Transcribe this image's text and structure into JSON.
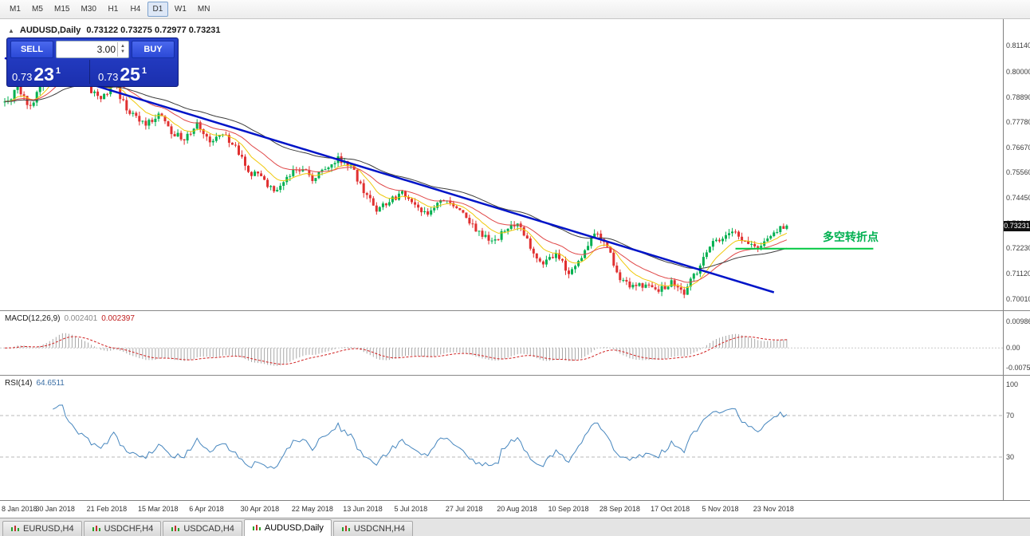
{
  "toolbar": {
    "timeframes": [
      "M1",
      "M5",
      "M15",
      "M30",
      "H1",
      "H4",
      "D1",
      "W1",
      "MN"
    ],
    "active": "D1"
  },
  "chart_header": {
    "symbol_text": "AUDUSD,Daily",
    "ohlc_text": "0.73122 0.73275 0.72977 0.73231"
  },
  "trade_panel": {
    "sell_label": "SELL",
    "buy_label": "BUY",
    "volume": "3.00",
    "sell_price": {
      "prefix": "0.73",
      "big": "23",
      "pip": "1"
    },
    "buy_price": {
      "prefix": "0.73",
      "big": "25",
      "pip": "1"
    }
  },
  "annotation": {
    "text": "多空转折点"
  },
  "macd_panel": {
    "title": "MACD(12,26,9)",
    "main_value": "0.002401",
    "signal_value": "0.002397",
    "axis_ticks": [
      "0.009863",
      "0.00",
      "-0.007543"
    ],
    "range": [
      -0.0092,
      0.0126
    ]
  },
  "rsi_panel": {
    "title": "RSI(14)",
    "value": "64.6511",
    "axis_ticks": [
      "100",
      "70",
      "30"
    ],
    "levels": [
      70,
      30
    ]
  },
  "tabs": {
    "items": [
      "EURUSD,H4",
      "USDCHF,H4",
      "USDCAD,H4",
      "AUDUSD,Daily",
      "USDCNH,H4"
    ],
    "active_index": 3
  },
  "colors": {
    "up_candle": "#00b050",
    "down_candle": "#e03030",
    "ma_fast": "#f0c80a",
    "ma_mid": "#e04848",
    "ma_slow": "#3c3c3c",
    "trendline": "#0014c8",
    "support_line": "#00c840",
    "annotation": "#00b050",
    "macd_histogram": "#a8a8a8",
    "macd_signal": "#d02020",
    "rsi_line": "#4686be",
    "badge_bg": "#101010",
    "badge_text": "#ffffff"
  },
  "chart_data": {
    "type": "candlestick",
    "symbol": "AUDUSD",
    "timeframe": "Daily",
    "ohlc_display": {
      "open": 0.73122,
      "high": 0.73275,
      "low": 0.72977,
      "close": 0.73231
    },
    "bars": 245,
    "price_range": [
      0.6965,
      0.821
    ],
    "price_axis_ticks": [
      "0.81140",
      "0.80000",
      "0.78890",
      "0.77780",
      "0.76670",
      "0.75560",
      "0.74450",
      "0.73340",
      "0.72230",
      "0.71120",
      "0.70010"
    ],
    "current_price": 0.73231,
    "current_price_label": "0.73231",
    "x_tick_labels": [
      "8 Jan 2018",
      "30 Jan 2018",
      "21 Feb 2018",
      "15 Mar 2018",
      "6 Apr 2018",
      "30 Apr 2018",
      "22 May 2018",
      "13 Jun 2018",
      "5 Jul 2018",
      "27 Jul 2018",
      "20 Aug 2018",
      "10 Sep 2018",
      "28 Sep 2018",
      "17 Oct 2018",
      "5 Nov 2018",
      "23 Nov 2018"
    ],
    "bars_per_x_tick": 16,
    "close_anchors": [
      [
        0,
        0.7865
      ],
      [
        4,
        0.792
      ],
      [
        8,
        0.784
      ],
      [
        12,
        0.796
      ],
      [
        16,
        0.8085
      ],
      [
        18,
        0.8105
      ],
      [
        22,
        0.799
      ],
      [
        26,
        0.7935
      ],
      [
        30,
        0.787
      ],
      [
        34,
        0.7955
      ],
      [
        38,
        0.783
      ],
      [
        44,
        0.777
      ],
      [
        48,
        0.7815
      ],
      [
        52,
        0.774
      ],
      [
        56,
        0.77
      ],
      [
        60,
        0.777
      ],
      [
        64,
        0.769
      ],
      [
        68,
        0.7735
      ],
      [
        72,
        0.767
      ],
      [
        76,
        0.756
      ],
      [
        80,
        0.7535
      ],
      [
        84,
        0.747
      ],
      [
        88,
        0.754
      ],
      [
        92,
        0.7575
      ],
      [
        96,
        0.753
      ],
      [
        100,
        0.7565
      ],
      [
        104,
        0.762
      ],
      [
        108,
        0.7585
      ],
      [
        112,
        0.747
      ],
      [
        116,
        0.7395
      ],
      [
        120,
        0.743
      ],
      [
        124,
        0.7465
      ],
      [
        128,
        0.7415
      ],
      [
        132,
        0.737
      ],
      [
        136,
        0.7445
      ],
      [
        140,
        0.7405
      ],
      [
        144,
        0.7355
      ],
      [
        148,
        0.729
      ],
      [
        152,
        0.7245
      ],
      [
        156,
        0.7305
      ],
      [
        160,
        0.734
      ],
      [
        164,
        0.7225
      ],
      [
        168,
        0.715
      ],
      [
        172,
        0.721
      ],
      [
        176,
        0.7115
      ],
      [
        180,
        0.719
      ],
      [
        184,
        0.73
      ],
      [
        188,
        0.723
      ],
      [
        192,
        0.7085
      ],
      [
        196,
        0.705
      ],
      [
        200,
        0.706
      ],
      [
        204,
        0.704
      ],
      [
        208,
        0.707
      ],
      [
        212,
        0.703
      ],
      [
        216,
        0.712
      ],
      [
        220,
        0.723
      ],
      [
        224,
        0.728
      ],
      [
        228,
        0.73
      ],
      [
        232,
        0.724
      ],
      [
        236,
        0.7225
      ],
      [
        240,
        0.729
      ],
      [
        244,
        0.73231
      ]
    ],
    "trendline": {
      "from_bar": 0,
      "from_price": 0.806,
      "to_bar": 240,
      "to_price": 0.703
    },
    "support_line": {
      "price": 0.7222,
      "from_bar": 228,
      "to_bar": 271
    },
    "moving_average_periods": [
      10,
      22,
      50
    ],
    "macd_params": [
      12,
      26,
      9
    ],
    "rsi_period": 14
  }
}
